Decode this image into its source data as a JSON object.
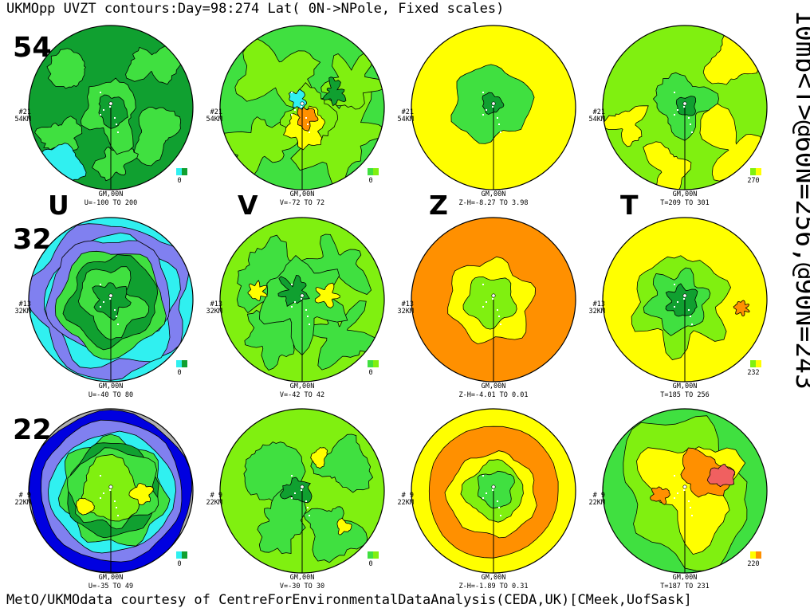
{
  "title": "UKMOpp UVZT contours:Day=98:274 Lat( 0N->NPole, Fixed scales)",
  "side_text": "10mb<T>@60N=256,@90N=243",
  "footer": "MetO/UKMOdata courtesy of CentreForEnvironmentalDataAnalysis(CEDA,UK)[CMeek,UofSask]",
  "variable_labels": [
    "U",
    "V",
    "Z",
    "T"
  ],
  "level_labels": [
    "54",
    "32",
    "22"
  ],
  "colors": {
    "palette": [
      "#b0b0b0",
      "#0000e0",
      "#8080f0",
      "#30f0f0",
      "#10a030",
      "#40e040",
      "#80f010",
      "#ffff00",
      "#ff9000",
      "#f06060"
    ]
  },
  "chart_data": {
    "type": "polar-stereographic contour maps (3 levels x 4 variables)",
    "variables": [
      "U",
      "V",
      "Z",
      "T"
    ],
    "levels": [
      {
        "row_label": "54",
        "level_tag": "#21",
        "height": "54KM",
        "panels": [
          {
            "variable": "U",
            "range_text": "U=-100 TO 200",
            "legend_value": "0",
            "legend_colors": [
              "#30f0f0",
              "#10a030"
            ],
            "meridian_label": "GM,00N"
          },
          {
            "variable": "V",
            "range_text": "V=-72 TO  72",
            "legend_value": "0",
            "legend_colors": [
              "#40e040",
              "#80f010"
            ],
            "meridian_label": "GM,00N"
          },
          {
            "variable": "Z",
            "range_text": "Z-H=-8.27 TO 3.98",
            "legend_value": "",
            "legend_colors": [],
            "meridian_label": "GM,00N"
          },
          {
            "variable": "T",
            "range_text": "T=209 TO 301",
            "legend_value": "270",
            "legend_colors": [
              "#80f010",
              "#ffff00"
            ],
            "meridian_label": "GM,00N"
          }
        ]
      },
      {
        "row_label": "32",
        "level_tag": "#13",
        "height": "32KM",
        "panels": [
          {
            "variable": "U",
            "range_text": "U=-40 TO  80",
            "legend_value": "0",
            "legend_colors": [
              "#30f0f0",
              "#10a030"
            ],
            "meridian_label": "GM,00N"
          },
          {
            "variable": "V",
            "range_text": "V=-42 TO  42",
            "legend_value": "0",
            "legend_colors": [
              "#40e040",
              "#80f010"
            ],
            "meridian_label": "GM,00N"
          },
          {
            "variable": "Z",
            "range_text": "Z-H=-4.01 TO 0.01",
            "legend_value": "",
            "legend_colors": [],
            "meridian_label": "GM,00N"
          },
          {
            "variable": "T",
            "range_text": "T=185 TO 256",
            "legend_value": "232",
            "legend_colors": [
              "#80f010",
              "#ffff00"
            ],
            "meridian_label": "GM,00N"
          }
        ]
      },
      {
        "row_label": "22",
        "level_tag": "# 9",
        "height": "22KM",
        "panels": [
          {
            "variable": "U",
            "range_text": "U=-35 TO  49",
            "legend_value": "0",
            "legend_colors": [
              "#30f0f0",
              "#10a030"
            ],
            "meridian_label": "GM,00N"
          },
          {
            "variable": "V",
            "range_text": "V=-30 TO  30",
            "legend_value": "0",
            "legend_colors": [
              "#40e040",
              "#80f010"
            ],
            "meridian_label": "GM,00N"
          },
          {
            "variable": "Z",
            "range_text": "Z-H=-1.89 TO 0.31",
            "legend_value": "",
            "legend_colors": [],
            "meridian_label": "GM,00N"
          },
          {
            "variable": "T",
            "range_text": "T=187 TO 231",
            "legend_value": "220",
            "legend_colors": [
              "#ffff00",
              "#ff9000"
            ],
            "meridian_label": "GM,00N"
          }
        ]
      }
    ]
  }
}
